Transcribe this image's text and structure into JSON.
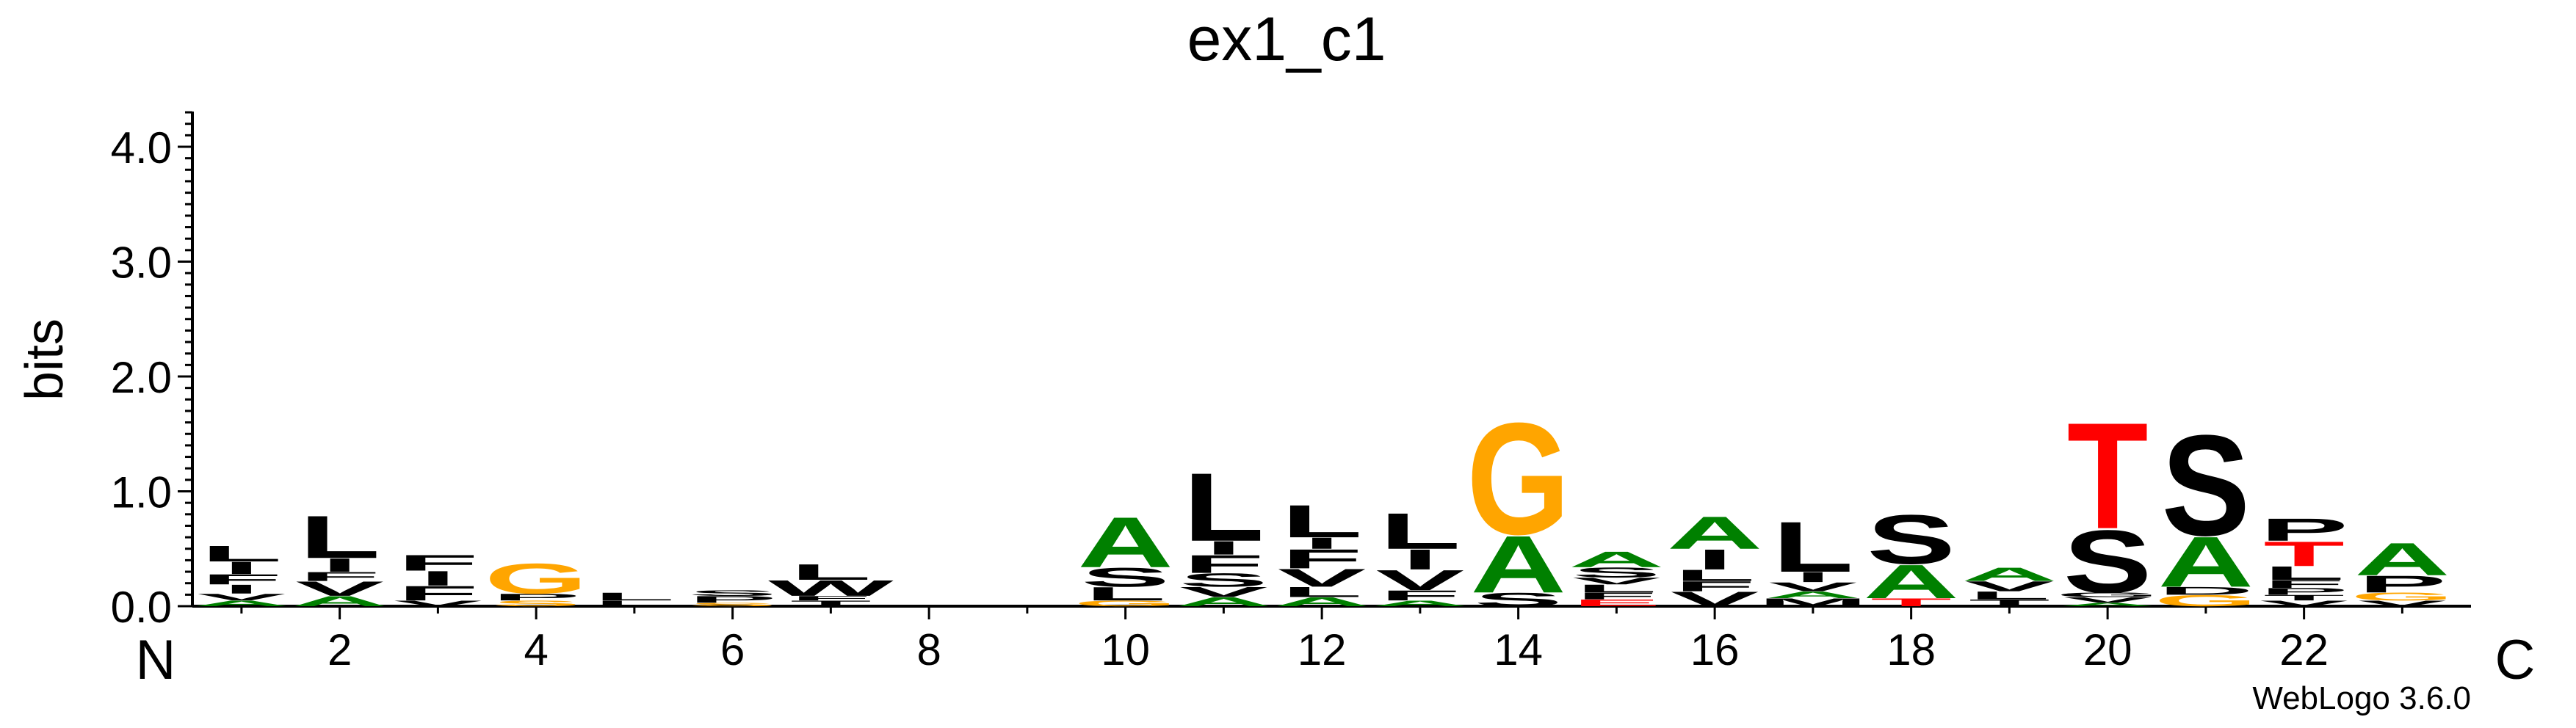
{
  "chart_data": {
    "type": "sequence-logo",
    "title": "ex1_c1",
    "ylabel": "bits",
    "ylim": [
      0,
      4.32
    ],
    "yticks": [
      {
        "value": 0,
        "label": "0.0"
      },
      {
        "value": 1,
        "label": "1.0"
      },
      {
        "value": 2,
        "label": "2.0"
      },
      {
        "value": 3,
        "label": "3.0"
      },
      {
        "value": 4,
        "label": "4.0"
      }
    ],
    "xlim": [
      0.5,
      23.7
    ],
    "xticks": [
      2,
      4,
      6,
      8,
      10,
      12,
      14,
      16,
      18,
      20,
      22
    ],
    "n_label": "N",
    "c_label": "C",
    "credit": "WebLogo 3.6.0",
    "colors": {
      "hydrophobic": "#000000",
      "small": "#008000",
      "glycine": "#FFA500",
      "polar": "#FFA500",
      "acidic": "#FF0000",
      "gray": "#999999"
    },
    "positions": [
      {
        "pos": 1,
        "stack": [
          {
            "aa": "A",
            "height": 0.05,
            "color": "#008000"
          },
          {
            "aa": "V",
            "height": 0.06,
            "color": "#000000"
          },
          {
            "aa": "I",
            "height": 0.08,
            "color": "#000000"
          },
          {
            "aa": "F",
            "height": 0.09,
            "color": "#000000"
          },
          {
            "aa": "I",
            "height": 0.11,
            "color": "#000000"
          },
          {
            "aa": "L",
            "height": 0.14,
            "color": "#000000"
          }
        ]
      },
      {
        "pos": 2,
        "stack": [
          {
            "aa": "A",
            "height": 0.09,
            "color": "#008000"
          },
          {
            "aa": "V",
            "height": 0.13,
            "color": "#000000"
          },
          {
            "aa": "F",
            "height": 0.08,
            "color": "#000000"
          },
          {
            "aa": "I",
            "height": 0.12,
            "color": "#000000"
          },
          {
            "aa": "L",
            "height": 0.38,
            "color": "#000000"
          }
        ]
      },
      {
        "pos": 3,
        "stack": [
          {
            "aa": "V",
            "height": 0.05,
            "color": "#000000"
          },
          {
            "aa": "F",
            "height": 0.13,
            "color": "#000000"
          },
          {
            "aa": "I",
            "height": 0.13,
            "color": "#000000"
          },
          {
            "aa": "F",
            "height": 0.14,
            "color": "#000000"
          }
        ]
      },
      {
        "pos": 4,
        "stack": [
          {
            "aa": "S",
            "height": 0.05,
            "color": "#FFA500"
          },
          {
            "aa": "P",
            "height": 0.06,
            "color": "#000000"
          },
          {
            "aa": "G",
            "height": 0.27,
            "color": "#FFA500"
          }
        ]
      },
      {
        "pos": 5,
        "stack": [
          {
            "aa": "L",
            "height": 0.05,
            "color": "#000000"
          },
          {
            "aa": "L",
            "height": 0.07,
            "color": "#000000"
          }
        ]
      },
      {
        "pos": 6,
        "stack": [
          {
            "aa": "S",
            "height": 0.03,
            "color": "#FFA500"
          },
          {
            "aa": "P",
            "height": 0.06,
            "color": "#000000"
          },
          {
            "aa": "S",
            "height": 0.05,
            "color": "#000000"
          }
        ]
      },
      {
        "pos": 7,
        "stack": [
          {
            "aa": "T",
            "height": 0.05,
            "color": "#000000"
          },
          {
            "aa": "F",
            "height": 0.04,
            "color": "#000000"
          },
          {
            "aa": "W",
            "height": 0.14,
            "color": "#000000"
          },
          {
            "aa": "L",
            "height": 0.14,
            "color": "#000000"
          }
        ]
      },
      {
        "pos": 8,
        "stack": [
          {
            "aa": "-",
            "height": 0.01,
            "color": "#000000"
          }
        ]
      },
      {
        "pos": 9,
        "stack": [
          {
            "aa": "-",
            "height": 0.01,
            "color": "#000000"
          }
        ]
      },
      {
        "pos": 10,
        "stack": [
          {
            "aa": "G",
            "height": 0.05,
            "color": "#FFA500"
          },
          {
            "aa": "L",
            "height": 0.12,
            "color": "#000000"
          },
          {
            "aa": "S",
            "height": 0.17,
            "color": "#000000"
          },
          {
            "aa": "A",
            "height": 0.45,
            "color": "#008000"
          }
        ]
      },
      {
        "pos": 11,
        "stack": [
          {
            "aa": "A",
            "height": 0.08,
            "color": "#008000"
          },
          {
            "aa": "V",
            "height": 0.09,
            "color": "#000000"
          },
          {
            "aa": "S",
            "height": 0.12,
            "color": "#000000"
          },
          {
            "aa": "F",
            "height": 0.16,
            "color": "#000000"
          },
          {
            "aa": "I",
            "height": 0.12,
            "color": "#000000"
          },
          {
            "aa": "L",
            "height": 0.61,
            "color": "#000000"
          }
        ]
      },
      {
        "pos": 12,
        "stack": [
          {
            "aa": "A",
            "height": 0.08,
            "color": "#008000"
          },
          {
            "aa": "L",
            "height": 0.09,
            "color": "#000000"
          },
          {
            "aa": "V",
            "height": 0.16,
            "color": "#000000"
          },
          {
            "aa": "F",
            "height": 0.17,
            "color": "#000000"
          },
          {
            "aa": "I",
            "height": 0.1,
            "color": "#000000"
          },
          {
            "aa": "L",
            "height": 0.29,
            "color": "#000000"
          }
        ]
      },
      {
        "pos": 13,
        "stack": [
          {
            "aa": "A",
            "height": 0.05,
            "color": "#008000"
          },
          {
            "aa": "F",
            "height": 0.09,
            "color": "#000000"
          },
          {
            "aa": "V",
            "height": 0.18,
            "color": "#000000"
          },
          {
            "aa": "I",
            "height": 0.18,
            "color": "#000000"
          },
          {
            "aa": "L",
            "height": 0.32,
            "color": "#000000"
          }
        ]
      },
      {
        "pos": 14,
        "stack": [
          {
            "aa": "S",
            "height": 0.12,
            "color": "#000000"
          },
          {
            "aa": "A",
            "height": 0.51,
            "color": "#008000"
          },
          {
            "aa": "G",
            "height": 1.0,
            "color": "#FFA500"
          }
        ]
      },
      {
        "pos": 15,
        "stack": [
          {
            "aa": "E",
            "height": 0.06,
            "color": "#FF0000"
          },
          {
            "aa": "F",
            "height": 0.06,
            "color": "#000000"
          },
          {
            "aa": "L",
            "height": 0.07,
            "color": "#000000"
          },
          {
            "aa": "V",
            "height": 0.06,
            "color": "#000000"
          },
          {
            "aa": "S",
            "height": 0.09,
            "color": "#000000"
          },
          {
            "aa": "A",
            "height": 0.14,
            "color": "#008000"
          }
        ]
      },
      {
        "pos": 16,
        "stack": [
          {
            "aa": "V",
            "height": 0.13,
            "color": "#000000"
          },
          {
            "aa": "F",
            "height": 0.09,
            "color": "#000000"
          },
          {
            "aa": "L",
            "height": 0.1,
            "color": "#000000"
          },
          {
            "aa": "I",
            "height": 0.18,
            "color": "#000000"
          },
          {
            "aa": "A",
            "height": 0.29,
            "color": "#008000"
          }
        ]
      },
      {
        "pos": 17,
        "stack": [
          {
            "aa": "M",
            "height": 0.07,
            "color": "#000000"
          },
          {
            "aa": "A",
            "height": 0.06,
            "color": "#008000"
          },
          {
            "aa": "V",
            "height": 0.08,
            "color": "#000000"
          },
          {
            "aa": "I",
            "height": 0.09,
            "color": "#000000"
          },
          {
            "aa": "L",
            "height": 0.45,
            "color": "#000000"
          }
        ]
      },
      {
        "pos": 18,
        "stack": [
          {
            "aa": "T",
            "height": 0.07,
            "color": "#FF0000"
          },
          {
            "aa": "A",
            "height": 0.3,
            "color": "#008000"
          },
          {
            "aa": "S",
            "height": 0.44,
            "color": "#000000"
          }
        ]
      },
      {
        "pos": 19,
        "stack": [
          {
            "aa": "T",
            "height": 0.06,
            "color": "#000000"
          },
          {
            "aa": "L",
            "height": 0.07,
            "color": "#000000"
          },
          {
            "aa": "V",
            "height": 0.09,
            "color": "#000000"
          },
          {
            "aa": "A",
            "height": 0.12,
            "color": "#008000"
          }
        ]
      },
      {
        "pos": 20,
        "stack": [
          {
            "aa": "A",
            "height": 0.03,
            "color": "#008000"
          },
          {
            "aa": "V",
            "height": 0.05,
            "color": "#000000"
          },
          {
            "aa": "G",
            "height": 0.04,
            "color": "#000000"
          },
          {
            "aa": "S",
            "height": 0.56,
            "color": "#000000"
          },
          {
            "aa": "T",
            "height": 0.95,
            "color": "#FF0000"
          }
        ]
      },
      {
        "pos": 21,
        "stack": [
          {
            "aa": "G",
            "height": 0.1,
            "color": "#FFA500"
          },
          {
            "aa": "D",
            "height": 0.07,
            "color": "#000000"
          },
          {
            "aa": "A",
            "height": 0.45,
            "color": "#008000"
          },
          {
            "aa": "S",
            "height": 0.9,
            "color": "#000000"
          }
        ]
      },
      {
        "pos": 22,
        "stack": [
          {
            "aa": "V",
            "height": 0.05,
            "color": "#000000"
          },
          {
            "aa": "T",
            "height": 0.05,
            "color": "#000000"
          },
          {
            "aa": "P",
            "height": 0.06,
            "color": "#000000"
          },
          {
            "aa": "F",
            "height": 0.07,
            "color": "#000000"
          },
          {
            "aa": "L",
            "height": 0.12,
            "color": "#000000"
          },
          {
            "aa": "T",
            "height": 0.22,
            "color": "#FF0000"
          },
          {
            "aa": "P",
            "height": 0.2,
            "color": "#000000"
          }
        ]
      },
      {
        "pos": 23,
        "stack": [
          {
            "aa": "V",
            "height": 0.05,
            "color": "#000000"
          },
          {
            "aa": "G",
            "height": 0.07,
            "color": "#FFA500"
          },
          {
            "aa": "P",
            "height": 0.15,
            "color": "#000000"
          },
          {
            "aa": "A",
            "height": 0.29,
            "color": "#008000"
          }
        ]
      }
    ]
  }
}
